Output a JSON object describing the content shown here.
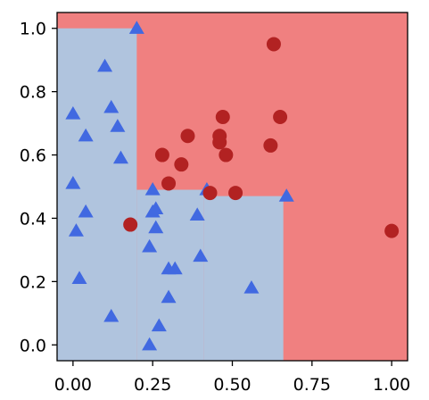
{
  "chart_data": {
    "type": "scatter",
    "title": "",
    "xlabel": "",
    "ylabel": "",
    "xlim": [
      -0.05,
      1.05
    ],
    "ylim": [
      -0.05,
      1.05
    ],
    "x_ticks": [
      "0.00",
      "0.25",
      "0.50",
      "0.75",
      "1.00"
    ],
    "x_tick_values": [
      0.0,
      0.25,
      0.5,
      0.75,
      1.0
    ],
    "y_ticks": [
      "0.0",
      "0.2",
      "0.4",
      "0.6",
      "0.8",
      "1.0"
    ],
    "y_tick_values": [
      0.0,
      0.2,
      0.4,
      0.6,
      0.8,
      1.0
    ],
    "grid": false,
    "legend": "none",
    "decision_regions": [
      {
        "class": "class-0",
        "color": "#b0c4de",
        "x_range": [
          -0.05,
          0.2
        ],
        "y_range": [
          -0.05,
          1.0
        ]
      },
      {
        "class": "class-0",
        "color": "#b0c4de",
        "x_range": [
          0.2,
          0.41
        ],
        "y_range": [
          -0.05,
          0.49
        ]
      },
      {
        "class": "class-0",
        "color": "#b0c4de",
        "x_range": [
          0.41,
          0.66
        ],
        "y_range": [
          -0.05,
          0.47
        ]
      },
      {
        "class": "class-1",
        "color": "#f08080",
        "x_range": [
          -0.05,
          1.05
        ],
        "y_range": [
          -0.05,
          1.05
        ]
      }
    ],
    "series": [
      {
        "marker": "triangle",
        "color": "#4169e1",
        "points": [
          [
            0.2,
            1.0
          ],
          [
            0.1,
            0.88
          ],
          [
            0.12,
            0.75
          ],
          [
            0.0,
            0.73
          ],
          [
            0.14,
            0.69
          ],
          [
            0.04,
            0.66
          ],
          [
            0.15,
            0.59
          ],
          [
            0.0,
            0.51
          ],
          [
            0.25,
            0.49
          ],
          [
            0.42,
            0.49
          ],
          [
            0.67,
            0.47
          ],
          [
            0.26,
            0.43
          ],
          [
            0.25,
            0.42
          ],
          [
            0.04,
            0.42
          ],
          [
            0.39,
            0.41
          ],
          [
            0.01,
            0.36
          ],
          [
            0.26,
            0.37
          ],
          [
            0.24,
            0.31
          ],
          [
            0.4,
            0.28
          ],
          [
            0.3,
            0.24
          ],
          [
            0.32,
            0.24
          ],
          [
            0.02,
            0.21
          ],
          [
            0.56,
            0.18
          ],
          [
            0.3,
            0.15
          ],
          [
            0.12,
            0.09
          ],
          [
            0.27,
            0.06
          ],
          [
            0.24,
            0.0
          ]
        ]
      },
      {
        "marker": "circle",
        "color": "#b22222",
        "points": [
          [
            0.63,
            0.95
          ],
          [
            0.47,
            0.72
          ],
          [
            0.65,
            0.72
          ],
          [
            0.36,
            0.66
          ],
          [
            0.46,
            0.66
          ],
          [
            0.46,
            0.64
          ],
          [
            0.62,
            0.63
          ],
          [
            0.28,
            0.6
          ],
          [
            0.48,
            0.6
          ],
          [
            0.34,
            0.57
          ],
          [
            0.3,
            0.51
          ],
          [
            0.43,
            0.48
          ],
          [
            0.51,
            0.48
          ],
          [
            0.18,
            0.38
          ],
          [
            1.0,
            0.36
          ]
        ]
      }
    ]
  }
}
